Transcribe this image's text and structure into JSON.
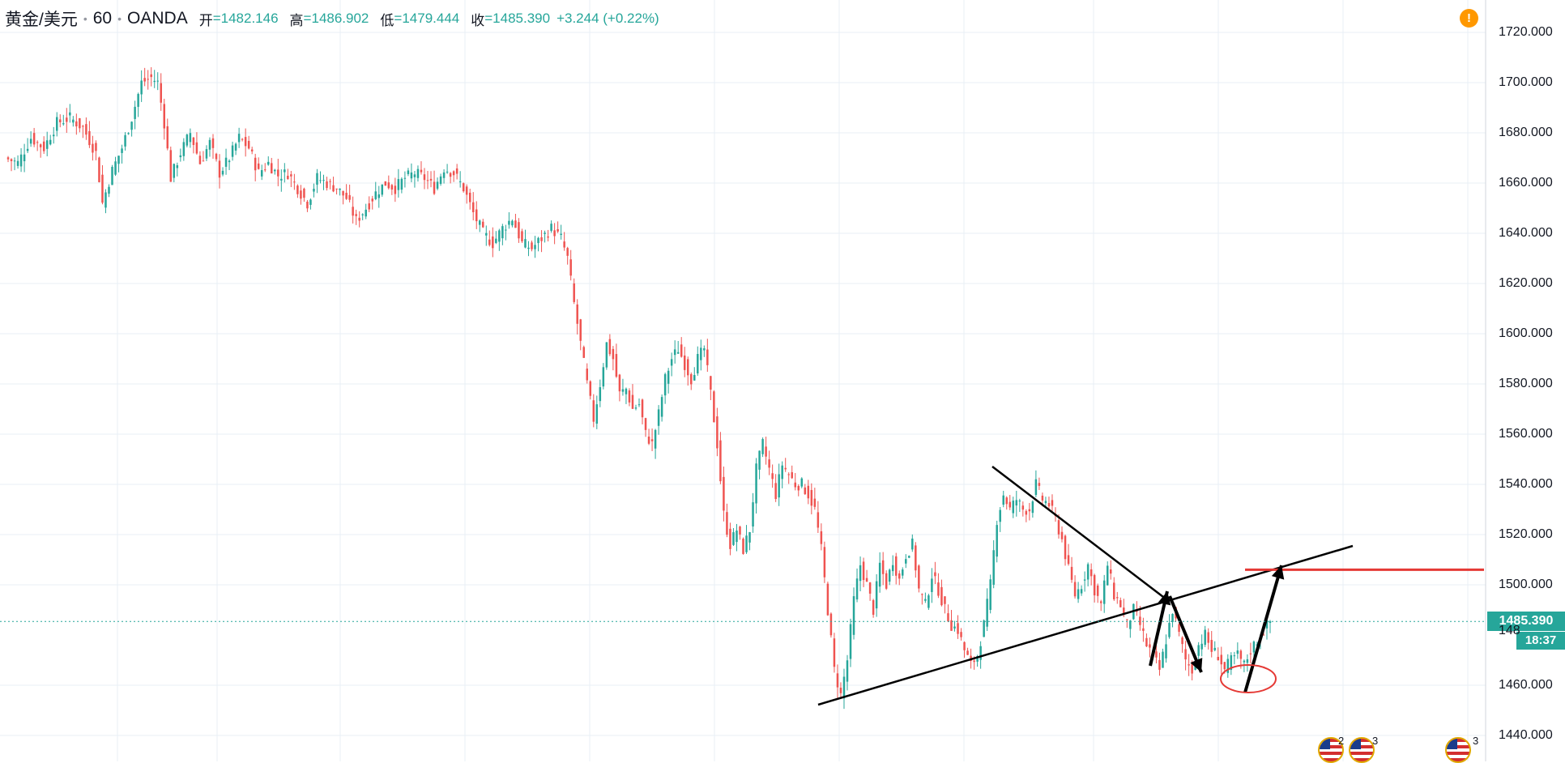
{
  "legend": {
    "symbol": "黄金/美元",
    "interval": "60",
    "exchange": "OANDA",
    "open_label": "开",
    "open": "1482.146",
    "high_label": "高",
    "high": "1486.902",
    "low_label": "低",
    "low": "1479.444",
    "close_label": "收",
    "close": "1485.390",
    "change": "+3.244 (+0.22%)"
  },
  "alert_badge": "!",
  "last_price_tag": "1485.390",
  "hidden_price_tag": "148",
  "countdown": "18:37",
  "events": [
    {
      "count": "2"
    },
    {
      "count": "3"
    },
    {
      "count": "3"
    }
  ],
  "colors": {
    "up": "#26a69a",
    "down": "#ef5350",
    "grid": "#e9eff5",
    "annotation": "#000000",
    "resistance": "#e53935",
    "background": "#ffffff"
  },
  "chart_data": {
    "type": "candlestick",
    "instrument": "黄金/美元",
    "timeframe": "60",
    "y_axis": {
      "ticks": [
        "1720.000",
        "1700.000",
        "1680.000",
        "1660.000",
        "1640.000",
        "1620.000",
        "1600.000",
        "1580.000",
        "1560.000",
        "1540.000",
        "1520.000",
        "1500.000",
        "1460.000",
        "1440.000"
      ],
      "range": [
        1430,
        1724
      ]
    },
    "last_price": 1485.39,
    "close_path": [
      [
        0,
        1670
      ],
      [
        4,
        1668
      ],
      [
        8,
        1678
      ],
      [
        12,
        1674
      ],
      [
        16,
        1684
      ],
      [
        20,
        1686
      ],
      [
        24,
        1682
      ],
      [
        28,
        1672
      ],
      [
        30,
        1652
      ],
      [
        33,
        1665
      ],
      [
        36,
        1674
      ],
      [
        39,
        1686
      ],
      [
        42,
        1700
      ],
      [
        45,
        1702
      ],
      [
        47,
        1700
      ],
      [
        49,
        1684
      ],
      [
        51,
        1662
      ],
      [
        54,
        1672
      ],
      [
        57,
        1680
      ],
      [
        60,
        1668
      ],
      [
        63,
        1676
      ],
      [
        66,
        1664
      ],
      [
        69,
        1670
      ],
      [
        72,
        1678
      ],
      [
        75,
        1674
      ],
      [
        78,
        1664
      ],
      [
        81,
        1668
      ],
      [
        84,
        1663
      ],
      [
        87,
        1664
      ],
      [
        90,
        1658
      ],
      [
        93,
        1652
      ],
      [
        96,
        1662
      ],
      [
        99,
        1660
      ],
      [
        102,
        1658
      ],
      [
        105,
        1654
      ],
      [
        108,
        1645
      ],
      [
        111,
        1650
      ],
      [
        114,
        1656
      ],
      [
        117,
        1660
      ],
      [
        120,
        1658
      ],
      [
        123,
        1662
      ],
      [
        126,
        1664
      ],
      [
        129,
        1662
      ],
      [
        132,
        1658
      ],
      [
        135,
        1666
      ],
      [
        138,
        1664
      ],
      [
        141,
        1658
      ],
      [
        144,
        1648
      ],
      [
        147,
        1640
      ],
      [
        150,
        1636
      ],
      [
        153,
        1642
      ],
      [
        156,
        1646
      ],
      [
        159,
        1636
      ],
      [
        162,
        1634
      ],
      [
        165,
        1638
      ],
      [
        168,
        1642
      ],
      [
        171,
        1638
      ],
      [
        173,
        1630
      ],
      [
        175,
        1612
      ],
      [
        177,
        1596
      ],
      [
        179,
        1580
      ],
      [
        181,
        1566
      ],
      [
        183,
        1580
      ],
      [
        185,
        1596
      ],
      [
        187,
        1590
      ],
      [
        189,
        1576
      ],
      [
        191,
        1578
      ],
      [
        193,
        1570
      ],
      [
        195,
        1572
      ],
      [
        197,
        1560
      ],
      [
        199,
        1556
      ],
      [
        201,
        1568
      ],
      [
        203,
        1582
      ],
      [
        205,
        1590
      ],
      [
        207,
        1594
      ],
      [
        209,
        1588
      ],
      [
        211,
        1582
      ],
      [
        213,
        1590
      ],
      [
        215,
        1594
      ],
      [
        217,
        1576
      ],
      [
        219,
        1556
      ],
      [
        221,
        1528
      ],
      [
        223,
        1516
      ],
      [
        225,
        1522
      ],
      [
        227,
        1514
      ],
      [
        229,
        1522
      ],
      [
        231,
        1546
      ],
      [
        233,
        1556
      ],
      [
        235,
        1546
      ],
      [
        237,
        1536
      ],
      [
        239,
        1548
      ],
      [
        241,
        1544
      ],
      [
        243,
        1540
      ],
      [
        245,
        1540
      ],
      [
        247,
        1536
      ],
      [
        249,
        1530
      ],
      [
        251,
        1514
      ],
      [
        253,
        1490
      ],
      [
        255,
        1466
      ],
      [
        257,
        1456
      ],
      [
        259,
        1470
      ],
      [
        261,
        1494
      ],
      [
        263,
        1508
      ],
      [
        265,
        1500
      ],
      [
        267,
        1490
      ],
      [
        269,
        1508
      ],
      [
        271,
        1500
      ],
      [
        273,
        1510
      ],
      [
        275,
        1502
      ],
      [
        277,
        1512
      ],
      [
        279,
        1516
      ],
      [
        281,
        1498
      ],
      [
        283,
        1492
      ],
      [
        285,
        1504
      ],
      [
        287,
        1498
      ],
      [
        289,
        1490
      ],
      [
        291,
        1484
      ],
      [
        293,
        1482
      ],
      [
        295,
        1474
      ],
      [
        297,
        1468
      ],
      [
        299,
        1472
      ],
      [
        301,
        1484
      ],
      [
        303,
        1500
      ],
      [
        305,
        1526
      ],
      [
        307,
        1536
      ],
      [
        309,
        1530
      ],
      [
        311,
        1534
      ],
      [
        313,
        1530
      ],
      [
        315,
        1530
      ],
      [
        317,
        1540
      ],
      [
        319,
        1534
      ],
      [
        321,
        1532
      ],
      [
        323,
        1526
      ],
      [
        325,
        1518
      ],
      [
        327,
        1506
      ],
      [
        329,
        1496
      ],
      [
        331,
        1500
      ],
      [
        333,
        1508
      ],
      [
        335,
        1498
      ],
      [
        337,
        1492
      ],
      [
        339,
        1508
      ],
      [
        341,
        1496
      ],
      [
        343,
        1492
      ],
      [
        345,
        1484
      ],
      [
        347,
        1490
      ],
      [
        349,
        1484
      ],
      [
        351,
        1476
      ],
      [
        353,
        1472
      ],
      [
        355,
        1466
      ],
      [
        357,
        1478
      ],
      [
        359,
        1490
      ],
      [
        361,
        1480
      ],
      [
        363,
        1470
      ],
      [
        365,
        1466
      ],
      [
        367,
        1476
      ],
      [
        369,
        1480
      ],
      [
        371,
        1474
      ],
      [
        373,
        1472
      ],
      [
        375,
        1466
      ],
      [
        377,
        1470
      ],
      [
        379,
        1472
      ],
      [
        381,
        1468
      ],
      [
        383,
        1474
      ],
      [
        385,
        1478
      ],
      [
        387,
        1482
      ],
      [
        389,
        1485.39
      ]
    ],
    "x_index_range": [
      0,
      389
    ],
    "drawings": [
      {
        "type": "trendline",
        "role": "descending resistance"
      },
      {
        "type": "trendline",
        "role": "ascending support"
      },
      {
        "type": "horizontal_segment",
        "role": "target level",
        "price": 1506
      },
      {
        "type": "arrow",
        "direction": "up"
      },
      {
        "type": "arrow",
        "direction": "down"
      },
      {
        "type": "arrow",
        "direction": "up"
      },
      {
        "type": "ellipse",
        "role": "highlighted low"
      }
    ]
  }
}
